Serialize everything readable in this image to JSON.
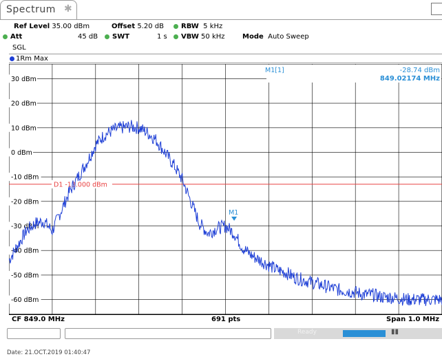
{
  "tab": {
    "title": "Spectrum",
    "pin_icon": "pin-icon"
  },
  "settings": {
    "ref_level_label": "Ref Level",
    "ref_level_value": "35.00 dBm",
    "offset_label": "Offset",
    "offset_value": "5.20 dB",
    "rbw_label": "RBW",
    "rbw_value": "5 kHz",
    "att_label": "Att",
    "att_value": "45 dB",
    "swt_label": "SWT",
    "swt_value": "1 s",
    "vbw_label": "VBW",
    "vbw_value": "50 kHz",
    "mode_label": "Mode",
    "mode_value": "Auto Sweep",
    "sgl": "SGL"
  },
  "trace": {
    "label": "1Rm Max",
    "color": "#1e3fd6"
  },
  "marker": {
    "header": "M1[1]",
    "level": "-28.74 dBm",
    "freq": "849.02174 MHz",
    "name": "M1",
    "color": "#2a8fd6"
  },
  "display_line": {
    "label": "D1",
    "value_text": "-13.000 dBm",
    "value": -13.0,
    "color": "#e84040"
  },
  "axis": {
    "y_labels": [
      "30 dBm",
      "20 dBm",
      "10 dBm",
      "0 dBm",
      "-10 dBm",
      "-20 dBm",
      "-30 dBm",
      "-40 dBm",
      "-50 dBm",
      "-60 dBm"
    ],
    "y_values": [
      30,
      20,
      10,
      0,
      -10,
      -20,
      -30,
      -40,
      -50,
      -60
    ],
    "ylim": [
      -66,
      36
    ]
  },
  "footer": {
    "cf": "CF 849.0 MHz",
    "pts": "691 pts",
    "span": "Span 1.0 MHz"
  },
  "status": {
    "ready": "Ready"
  },
  "date_line": "Date: 21.OCT.2019  01:40:47",
  "chart_data": {
    "type": "line",
    "xlabel": "",
    "ylabel": "",
    "ylim": [
      -66,
      36
    ],
    "grid": true,
    "series": [
      {
        "name": "1Rm Max",
        "x_frac": [
          0,
          0.02,
          0.04,
          0.06,
          0.08,
          0.1,
          0.12,
          0.14,
          0.16,
          0.18,
          0.2,
          0.22,
          0.24,
          0.26,
          0.28,
          0.3,
          0.32,
          0.34,
          0.36,
          0.38,
          0.4,
          0.42,
          0.44,
          0.46,
          0.48,
          0.5,
          0.52,
          0.54,
          0.56,
          0.58,
          0.6,
          0.62,
          0.64,
          0.66,
          0.68,
          0.7,
          0.72,
          0.74,
          0.76,
          0.78,
          0.8,
          0.82,
          0.84,
          0.86,
          0.88,
          0.9,
          0.92,
          0.94,
          0.96,
          0.98,
          1.0
        ],
        "values": [
          -44,
          -38,
          -32,
          -29,
          -28,
          -32,
          -24,
          -16,
          -10,
          -4,
          3,
          7,
          9,
          10,
          10.5,
          10,
          8,
          5,
          0,
          -5,
          -11,
          -20,
          -29,
          -33,
          -31,
          -30,
          -33,
          -39,
          -42,
          -44,
          -46,
          -48,
          -49,
          -51,
          -52,
          -53,
          -54,
          -55,
          -56,
          -56.5,
          -57,
          -58,
          -58,
          -59,
          -59,
          -59.5,
          -60,
          -60,
          -60,
          -60,
          -60
        ]
      }
    ]
  }
}
